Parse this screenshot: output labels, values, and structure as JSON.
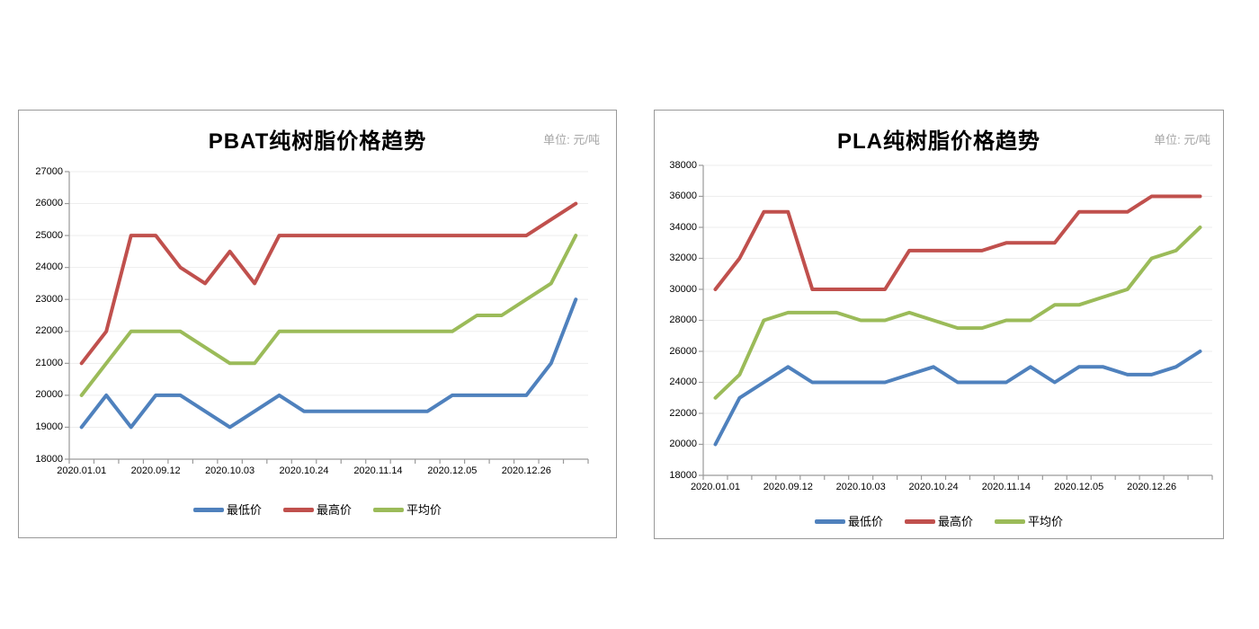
{
  "colors": {
    "series_min": "#4F81BD",
    "series_max": "#C0504D",
    "series_avg": "#9BBB59",
    "axis": "#9A9A9A",
    "grid": "#EDEDED",
    "unit_text": "#A6A6A6",
    "panel_border": "#999999"
  },
  "chart_data": [
    {
      "type": "line",
      "title": "PBAT纯树脂价格趋势",
      "unit": "单位: 元/吨",
      "ylim": [
        18000,
        27000
      ],
      "y_ticks": [
        18000,
        19000,
        20000,
        21000,
        22000,
        23000,
        24000,
        25000,
        26000,
        27000
      ],
      "n_points": 21,
      "x_tick_labels": [
        "2020.01.01",
        "2020.09.12",
        "2020.10.03",
        "2020.10.24",
        "2020.11.14",
        "2020.12.05",
        "2020.12.26"
      ],
      "x_label_positions": [
        0,
        3,
        6,
        9,
        12,
        15,
        18
      ],
      "grid": "horizontal",
      "legend_position": "bottom",
      "series": [
        {
          "key": "min",
          "name": "最低价",
          "color": "#4F81BD",
          "values": [
            19000,
            20000,
            19000,
            20000,
            20000,
            19500,
            19000,
            19500,
            20000,
            19500,
            19500,
            19500,
            19500,
            19500,
            19500,
            20000,
            20000,
            20000,
            20000,
            21000,
            23000
          ]
        },
        {
          "key": "max",
          "name": "最高价",
          "color": "#C0504D",
          "values": [
            21000,
            22000,
            25000,
            25000,
            24000,
            23500,
            24500,
            23500,
            25000,
            25000,
            25000,
            25000,
            25000,
            25000,
            25000,
            25000,
            25000,
            25000,
            25000,
            25500,
            26000
          ]
        },
        {
          "key": "avg",
          "name": "平均价",
          "color": "#9BBB59",
          "values": [
            20000,
            21000,
            22000,
            22000,
            22000,
            21500,
            21000,
            21000,
            22000,
            22000,
            22000,
            22000,
            22000,
            22000,
            22000,
            22000,
            22500,
            22500,
            23000,
            23500,
            25000
          ]
        }
      ]
    },
    {
      "type": "line",
      "title": "PLA纯树脂价格趋势",
      "unit": "单位: 元/吨",
      "ylim": [
        18000,
        38000
      ],
      "y_ticks": [
        18000,
        20000,
        22000,
        24000,
        26000,
        28000,
        30000,
        32000,
        34000,
        36000,
        38000
      ],
      "n_points": 21,
      "x_tick_labels": [
        "2020.01.01",
        "2020.09.12",
        "2020.10.03",
        "2020.10.24",
        "2020.11.14",
        "2020.12.05",
        "2020.12.26"
      ],
      "x_label_positions": [
        0,
        3,
        6,
        9,
        12,
        15,
        18
      ],
      "grid": "horizontal",
      "legend_position": "bottom",
      "series": [
        {
          "key": "min",
          "name": "最低价",
          "color": "#4F81BD",
          "values": [
            20000,
            23000,
            24000,
            25000,
            24000,
            24000,
            24000,
            24000,
            24500,
            25000,
            24000,
            24000,
            24000,
            25000,
            24000,
            25000,
            25000,
            24500,
            24500,
            25000,
            26000
          ]
        },
        {
          "key": "max",
          "name": "最高价",
          "color": "#C0504D",
          "values": [
            30000,
            32000,
            35000,
            35000,
            30000,
            30000,
            30000,
            30000,
            32500,
            32500,
            32500,
            32500,
            33000,
            33000,
            33000,
            35000,
            35000,
            35000,
            36000,
            36000,
            36000
          ]
        },
        {
          "key": "avg",
          "name": "平均价",
          "color": "#9BBB59",
          "values": [
            23000,
            24500,
            28000,
            28500,
            28500,
            28500,
            28000,
            28000,
            28500,
            28000,
            27500,
            27500,
            28000,
            28000,
            29000,
            29000,
            29500,
            30000,
            32000,
            32500,
            34000
          ]
        }
      ]
    }
  ]
}
